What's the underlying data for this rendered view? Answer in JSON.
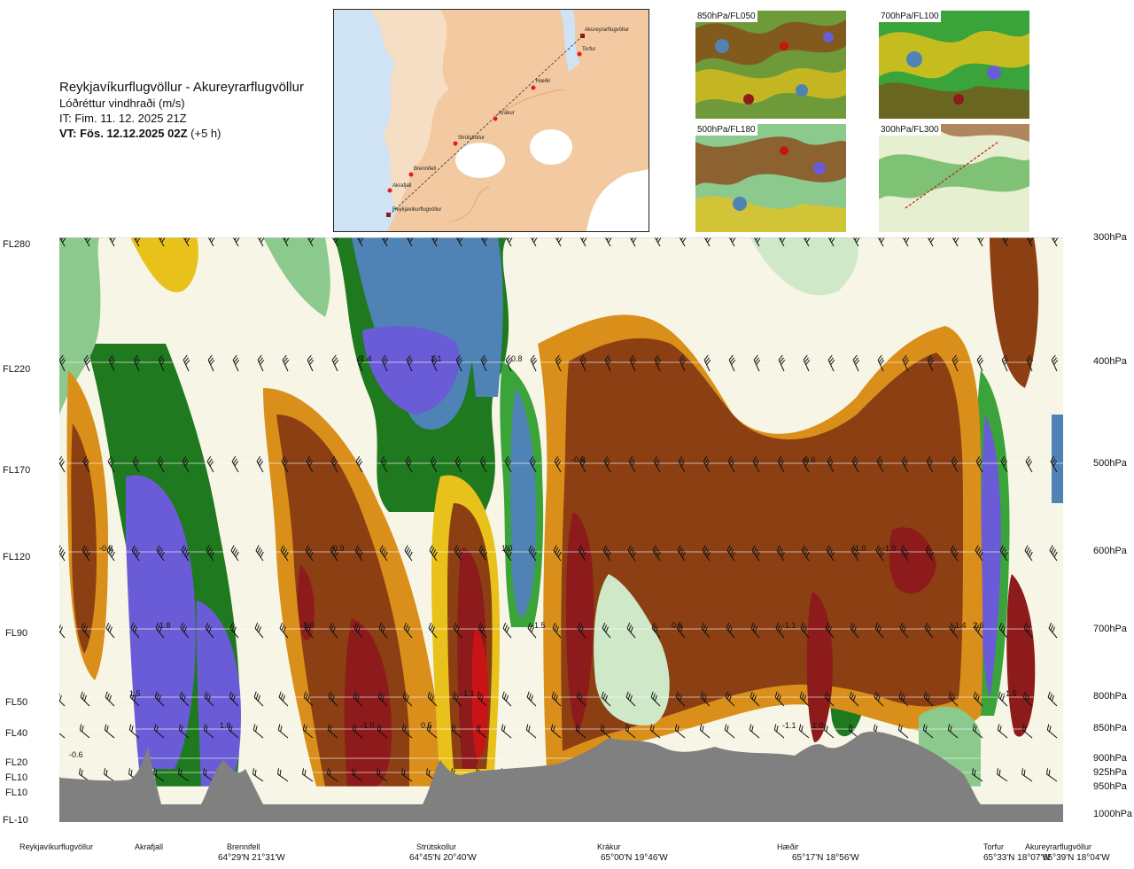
{
  "header": {
    "route": "Reykjavíkurflugvöllur - Akureyrarflugvöllur",
    "variable": "Lóðréttur vindhraði (m/s)",
    "issue_time": "IT: Fim. 11. 12. 2025 21Z",
    "valid_time": "VT: Fös. 12.12.2025 02Z",
    "lead": "(+5 h)"
  },
  "map": {
    "points": [
      "Akureyrarflugvöllur",
      "Torfur",
      "Hæðir",
      "Krákur",
      "Strútskollur",
      "Brennifell",
      "Akrafjall",
      "Reykjavíkurflugvöllur"
    ]
  },
  "mini_maps": [
    {
      "label": "850hPa/FL050"
    },
    {
      "label": "700hPa/FL100"
    },
    {
      "label": "500hPa/FL180"
    },
    {
      "label": "300hPa/FL300"
    }
  ],
  "colors": {
    "strong_down": "#6a5cd6",
    "moderate_down": "#4f82b5",
    "green_dark": "#1f7a1f",
    "green": "#3aa33a",
    "green_light": "#8cc98c",
    "green_pale": "#cfe9c8",
    "neutral": "#f7f5e6",
    "yellow_pale": "#f7efa8",
    "yellow": "#e8c21a",
    "orange": "#d98f1a",
    "brown": "#8b3f12",
    "dark_red": "#8e1b1b",
    "red": "#c81414",
    "terrain": "#808080"
  },
  "chart_data": {
    "type": "heatmap",
    "title": "Lóðréttur vindhraði (m/s)",
    "y_left_labels": [
      "FL280",
      "FL220",
      "FL170",
      "FL120",
      "FL90",
      "FL50",
      "FL40",
      "FL20",
      "FL10",
      "FL10",
      "FL-10"
    ],
    "y_right_labels": [
      "300hPa",
      "400hPa",
      "500hPa",
      "600hPa",
      "700hPa",
      "800hPa",
      "850hPa",
      "900hPa",
      "925hPa",
      "950hPa",
      "1000hPa"
    ],
    "pressure_levels_hpa": [
      300,
      400,
      500,
      600,
      700,
      800,
      850,
      900,
      925,
      950,
      1000
    ],
    "x_waypoints": [
      {
        "name": "Reykjavíkurflugvöllur",
        "coord": ""
      },
      {
        "name": "Akrafjall",
        "coord": ""
      },
      {
        "name": "Brennifell",
        "coord": "64°29'N 21°31'W"
      },
      {
        "name": "Strútskollur",
        "coord": "64°45'N 20°40'W"
      },
      {
        "name": "Krákur",
        "coord": "65°00'N 19°46'W"
      },
      {
        "name": "Hæðir",
        "coord": "65°17'N 18°56'W"
      },
      {
        "name": "Torfur",
        "coord": "65°33'N 18°07'W"
      },
      {
        "name": "Akureyrarflugvöllur",
        "coord": "65°39'N 18°04'W"
      }
    ],
    "value_labels": [
      {
        "v": "1.4",
        "dist": 0.3,
        "hpa": 400
      },
      {
        "v": "1.1",
        "dist": 0.37,
        "hpa": 400
      },
      {
        "v": "0.8",
        "dist": 0.45,
        "hpa": 400
      },
      {
        "v": "-0.8",
        "dist": 0.51,
        "hpa": 500
      },
      {
        "v": "-0.6",
        "dist": 0.74,
        "hpa": 500
      },
      {
        "v": "-0.8",
        "dist": 0.04,
        "hpa": 600
      },
      {
        "v": "-0.9",
        "dist": 0.27,
        "hpa": 600
      },
      {
        "v": "1.0",
        "dist": 0.44,
        "hpa": 600
      },
      {
        "v": "-1.0",
        "dist": 0.79,
        "hpa": 600
      },
      {
        "v": "-1.0",
        "dist": 0.82,
        "hpa": 600
      },
      {
        "v": "1.8",
        "dist": 0.1,
        "hpa": 700
      },
      {
        "v": "-1.0",
        "dist": 0.24,
        "hpa": 700
      },
      {
        "v": "-1.5",
        "dist": 0.47,
        "hpa": 700
      },
      {
        "v": "0.5",
        "dist": 0.61,
        "hpa": 700
      },
      {
        "v": "-1.1",
        "dist": 0.72,
        "hpa": 700
      },
      {
        "v": "-1.4",
        "dist": 0.89,
        "hpa": 700
      },
      {
        "v": "2.6",
        "dist": 0.91,
        "hpa": 700
      },
      {
        "v": "1.5",
        "dist": 0.07,
        "hpa": 800
      },
      {
        "v": "-1.1",
        "dist": 0.4,
        "hpa": 800
      },
      {
        "v": "-1.5",
        "dist": 0.94,
        "hpa": 800
      },
      {
        "v": "1.6",
        "dist": 0.16,
        "hpa": 850
      },
      {
        "v": "-1.0",
        "dist": 0.3,
        "hpa": 850
      },
      {
        "v": "0.5",
        "dist": 0.36,
        "hpa": 850
      },
      {
        "v": "-1.1",
        "dist": 0.72,
        "hpa": 850
      },
      {
        "v": "1.0",
        "dist": 0.75,
        "hpa": 850
      },
      {
        "v": "-0.6",
        "dist": 0.01,
        "hpa": 900
      }
    ],
    "xlabel": "",
    "ylabel": ""
  }
}
